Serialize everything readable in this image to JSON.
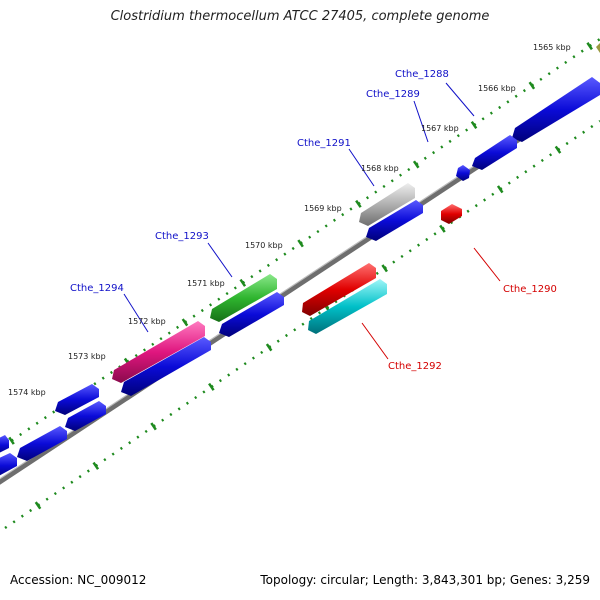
{
  "title": "Clostridium thermocellum ATCC 27405, complete genome",
  "footer": {
    "accession": "Accession: NC_009012",
    "topology": "Topology: circular; Length: 3,843,301 bp; Genes: 3,259"
  },
  "colors": {
    "backbone": "#7a7a7a",
    "forward_gene": "#0b0bd8",
    "ruler": "#1e8a1e",
    "label_forward": "#1010c8",
    "label_reverse": "#d40000",
    "cthe_1291": "#a8a8a8",
    "cthe_1293": "#2fb52f",
    "cthe_1294": "#e0167f",
    "cthe_1290": "#e00000",
    "cthe_1292": "#00c0c8"
  },
  "ruler_labels": [
    "1565 kbp",
    "1566 kbp",
    "1567 kbp",
    "1568 kbp",
    "1569 kbp",
    "1570 kbp",
    "1571 kbp",
    "1572 kbp",
    "1573 kbp",
    "1574 kbp"
  ],
  "gene_labels": [
    {
      "id": "Cthe_1288",
      "text": "Cthe_1288",
      "strand": "forward"
    },
    {
      "id": "Cthe_1289",
      "text": "Cthe_1289",
      "strand": "forward"
    },
    {
      "id": "Cthe_1291",
      "text": "Cthe_1291",
      "strand": "forward"
    },
    {
      "id": "Cthe_1293",
      "text": "Cthe_1293",
      "strand": "forward"
    },
    {
      "id": "Cthe_1294",
      "text": "Cthe_1294",
      "strand": "forward"
    },
    {
      "id": "Cthe_1290",
      "text": "Cthe_1290",
      "strand": "reverse"
    },
    {
      "id": "Cthe_1292",
      "text": "Cthe_1292",
      "strand": "reverse"
    }
  ]
}
